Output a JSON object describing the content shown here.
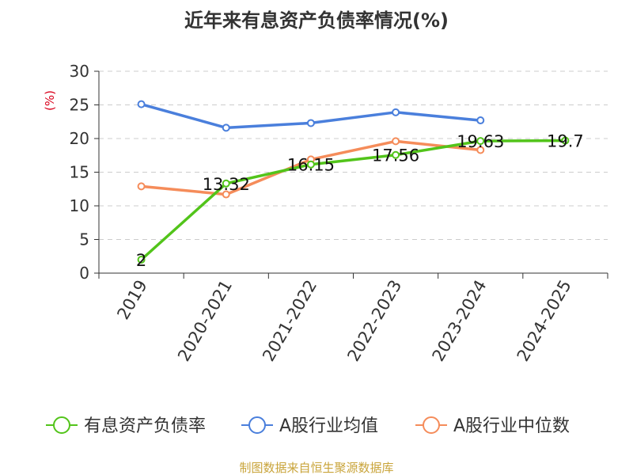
{
  "chart_data": {
    "type": "line",
    "title": "近年来有息资产负债率情况(%)",
    "ylabel": "(%)",
    "xlabel": "",
    "ylim": [
      0,
      30
    ],
    "yticks": [
      0,
      5,
      10,
      15,
      20,
      25,
      30
    ],
    "grid": true,
    "legend_position": "bottom",
    "categories": [
      "2019",
      "2020-2021",
      "2021-2022",
      "2022-2023",
      "2023-2024",
      "2024-2025"
    ],
    "series": [
      {
        "name": "有息资产负债率",
        "color": "#52c41a",
        "values": [
          2,
          13.32,
          16.15,
          17.56,
          19.63,
          19.7
        ],
        "labels": [
          "2",
          "13.32",
          "16.15",
          "17.56",
          "19.63",
          "19.7"
        ]
      },
      {
        "name": "A股行业均值",
        "color": "#4a7fdc",
        "values": [
          25.1,
          21.6,
          22.3,
          23.9,
          22.7,
          null
        ]
      },
      {
        "name": "A股行业中位数",
        "color": "#f58c5a",
        "values": [
          12.9,
          11.7,
          16.9,
          19.6,
          18.3,
          null
        ]
      }
    ],
    "source": "制图数据来自恒生聚源数据库"
  }
}
